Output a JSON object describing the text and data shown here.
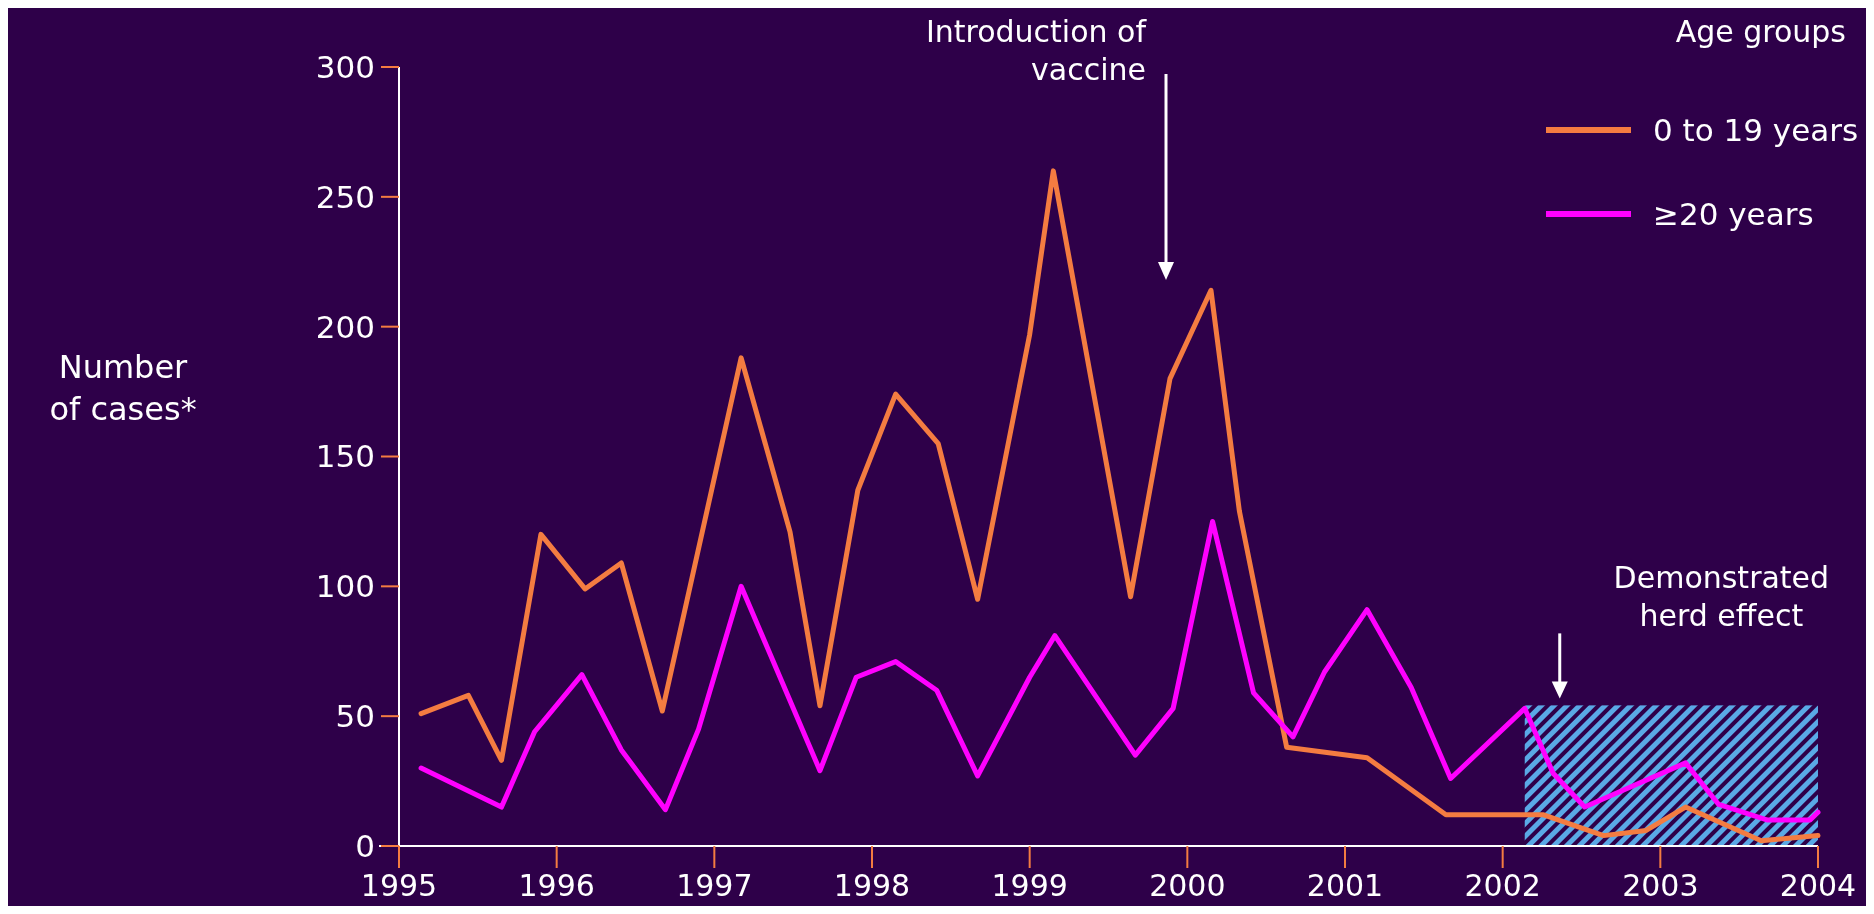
{
  "chart_data": {
    "type": "line",
    "xlabel": null,
    "ylabel": "Number of cases*",
    "legend_title": "Age groups",
    "legend": "top right",
    "grid": false,
    "marker": "none",
    "line_style": "solid",
    "xlim": [
      1995,
      2004
    ],
    "xticks": [
      1995,
      1996,
      1997,
      1998,
      1999,
      2000,
      2001,
      2002,
      2003,
      2004
    ],
    "ylim": [
      0,
      300
    ],
    "yticks": [
      0,
      50,
      100,
      150,
      200,
      250,
      300
    ],
    "series": [
      {
        "name": "0 to 19 years",
        "color": "#f47c41",
        "x": [
          1995.14,
          1995.44,
          1995.65,
          1995.9,
          1996.18,
          1996.41,
          1996.67,
          1997.17,
          1997.48,
          1997.67,
          1997.91,
          1998.15,
          1998.42,
          1998.67,
          1999.0,
          1999.15,
          1999.64,
          1999.89,
          2000.15,
          2000.33,
          2000.63,
          2001.14,
          2001.64,
          2002.26,
          2002.64,
          2002.91,
          2003.16,
          2003.64,
          2004.0
        ],
        "values": [
          51,
          58,
          33,
          120,
          99,
          109,
          52,
          188,
          121,
          54,
          137,
          174,
          155,
          95,
          197,
          260,
          96,
          180,
          214,
          129,
          38,
          34,
          12,
          12,
          4,
          6,
          15,
          2,
          4
        ]
      },
      {
        "name": "≥20 years",
        "color": "#ff00ff",
        "x": [
          1995.14,
          1995.65,
          1995.86,
          1996.16,
          1996.41,
          1996.69,
          1996.9,
          1997.17,
          1997.67,
          1997.9,
          1998.15,
          1998.41,
          1998.67,
          1999.0,
          1999.16,
          1999.67,
          1999.91,
          2000.16,
          2000.42,
          2000.67,
          2000.87,
          2001.14,
          2001.42,
          2001.67,
          2002.14,
          2002.32,
          2002.52,
          2003.16,
          2003.37,
          2003.68,
          2003.95,
          2004.0
        ],
        "values": [
          30,
          15,
          44,
          66,
          37,
          14,
          45,
          100,
          29,
          65,
          71,
          60,
          27,
          65,
          81,
          35,
          53,
          125,
          59,
          42,
          67,
          91,
          61,
          26,
          53,
          28,
          15,
          32,
          16,
          10,
          10,
          13
        ]
      }
    ],
    "bands": [
      {
        "axis": "x",
        "from": 2002.14,
        "to": 2004,
        "label": "Demonstrated herd effect",
        "color": "#5aa9e6"
      }
    ],
    "annotations": [
      "Introduction of vaccine"
    ]
  }
}
